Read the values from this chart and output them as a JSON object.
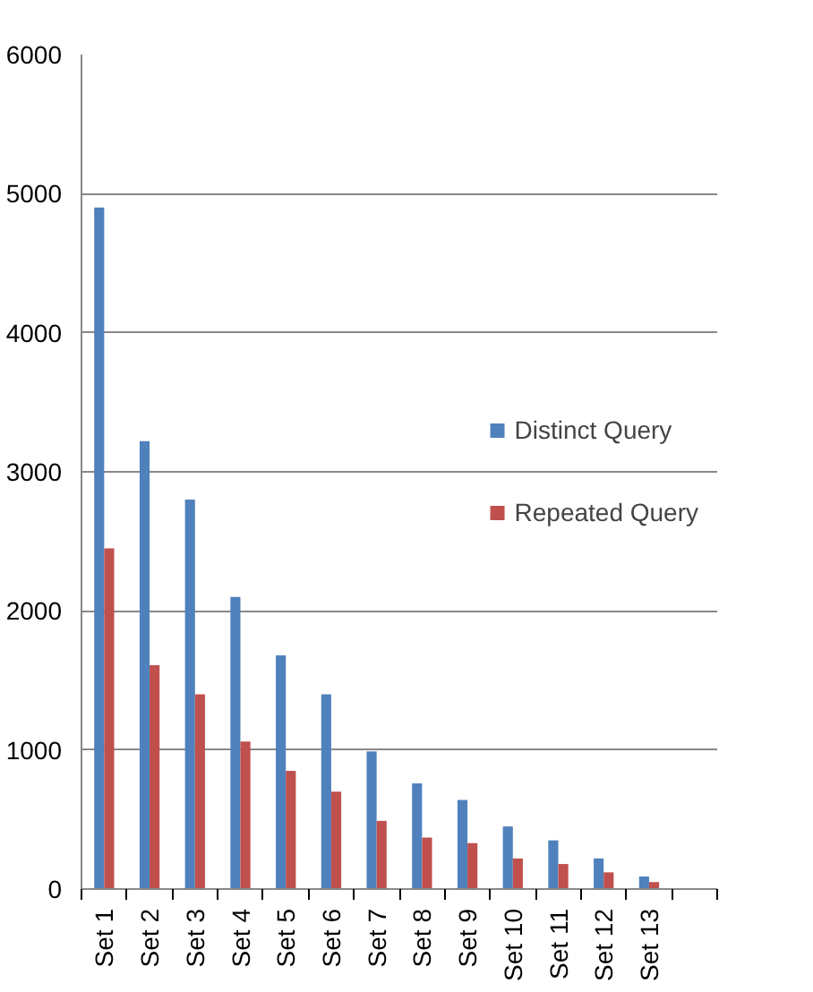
{
  "chart_data": {
    "type": "bar",
    "categories": [
      "Set 1",
      "Set 2",
      "Set 3",
      "Set 4",
      "Set 5",
      "Set 6",
      "Set 7",
      "Set 8",
      "Set 9",
      "Set 10",
      "Set 11",
      "Set 12",
      "Set 13",
      null
    ],
    "series": [
      {
        "name": "Distinct Query",
        "color": "#4f81bd",
        "values": [
          4900,
          3220,
          2800,
          2100,
          1680,
          1400,
          990,
          760,
          640,
          450,
          350,
          220,
          90,
          null
        ]
      },
      {
        "name": "Repeated Query",
        "color": "#c0504d",
        "values": [
          2450,
          1610,
          1400,
          1060,
          850,
          700,
          490,
          370,
          330,
          220,
          180,
          120,
          50,
          null
        ]
      }
    ],
    "ylim": [
      0,
      6000
    ],
    "yticks": [
      0,
      1000,
      2000,
      3000,
      4000,
      5000,
      6000
    ],
    "grid": "y",
    "legend": "right"
  }
}
